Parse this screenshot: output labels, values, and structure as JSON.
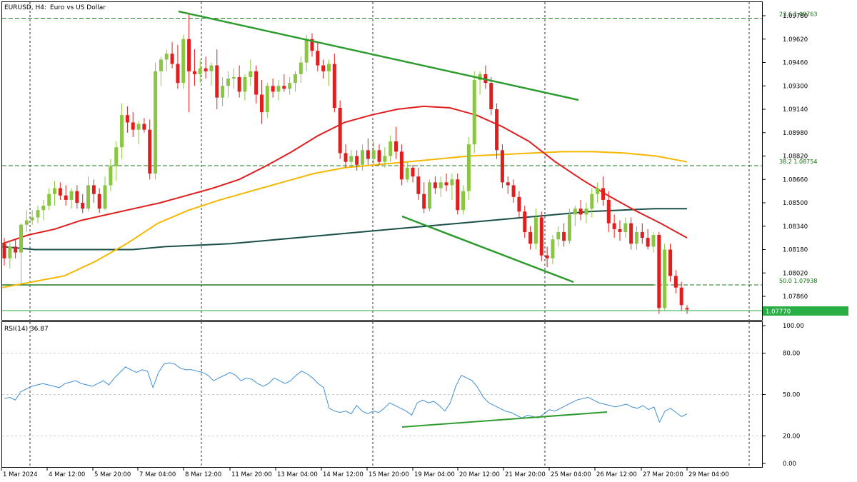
{
  "header": {
    "symbol": "EURUSD, H4:",
    "description": "Euro vs US Dollar",
    "indicator_label": "RSI(14) 36.87"
  },
  "colors": {
    "up_candle": "#8ac642",
    "down_candle": "#e01e1e",
    "ma_red": "#e01e1e",
    "ma_orange": "#f5b700",
    "ma_dark": "#1b4f4a",
    "trend_line": "#2e9b2e",
    "fib_line": "#1f7a1f",
    "bid_line": "#27ae45",
    "rsi_line": "#3f8fd8",
    "grid": "#000000"
  },
  "chart_data": [
    {
      "type": "candlestick",
      "title": "EURUSD, H4: Euro vs US Dollar",
      "ylim": [
        1.077,
        1.098
      ],
      "y_ticks": [
        "1.09780",
        "1.09620",
        "1.09460",
        "1.09300",
        "1.09140",
        "1.08980",
        "1.08820",
        "1.08660",
        "1.08500",
        "1.08340",
        "1.08180",
        "1.08020",
        "1.07860"
      ],
      "x_ticks": [
        "1 Mar 2024",
        "4 Mar 12:00",
        "5 Mar 20:00",
        "7 Mar 04:00",
        "8 Mar 12:00",
        "11 Mar 20:00",
        "13 Mar 04:00",
        "14 Mar 12:00",
        "15 Mar 20:00",
        "19 Mar 04:00",
        "20 Mar 12:00",
        "21 Mar 20:00",
        "25 Mar 04:00",
        "26 Mar 12:00",
        "27 Mar 20:00",
        "29 Mar 04:00"
      ],
      "current_price": "1.07770",
      "fib_levels": [
        {
          "label": "23.6 1.09763",
          "value": 1.09763
        },
        {
          "label": "38.2 1.08754",
          "value": 1.08754
        },
        {
          "label": "50.0 1.07938",
          "value": 1.07938
        }
      ],
      "candles": [
        [
          1.0822,
          1.0826,
          1.0807,
          1.0812
        ],
        [
          1.0812,
          1.0823,
          1.0805,
          1.082
        ],
        [
          1.082,
          1.0825,
          1.0812,
          1.0816
        ],
        [
          1.0816,
          1.0836,
          1.0794,
          1.0835
        ],
        [
          1.0835,
          1.0845,
          1.083,
          1.0838
        ],
        [
          1.0838,
          1.0845,
          1.0835,
          1.084
        ],
        [
          1.084,
          1.0848,
          1.0836,
          1.0845
        ],
        [
          1.0845,
          1.0852,
          1.0838,
          1.0848
        ],
        [
          1.0848,
          1.086,
          1.0845,
          1.0856
        ],
        [
          1.0856,
          1.0865,
          1.0848,
          1.086
        ],
        [
          1.086,
          1.0864,
          1.0852,
          1.0855
        ],
        [
          1.0855,
          1.0862,
          1.0848,
          1.0852
        ],
        [
          1.0852,
          1.086,
          1.0846,
          1.0858
        ],
        [
          1.0858,
          1.0862,
          1.0846,
          1.085
        ],
        [
          1.085,
          1.0856,
          1.0843,
          1.0846
        ],
        [
          1.0846,
          1.0868,
          1.0844,
          1.0862
        ],
        [
          1.0862,
          1.0866,
          1.085,
          1.0856
        ],
        [
          1.0856,
          1.086,
          1.0843,
          1.0846
        ],
        [
          1.0846,
          1.0868,
          1.0845,
          1.0862
        ],
        [
          1.0862,
          1.088,
          1.0858,
          1.0875
        ],
        [
          1.0875,
          1.0892,
          1.0865,
          1.0888
        ],
        [
          1.0888,
          1.0918,
          1.088,
          1.091
        ],
        [
          1.091,
          1.0916,
          1.0898,
          1.0905
        ],
        [
          1.0905,
          1.0912,
          1.0895,
          1.09
        ],
        [
          1.09,
          1.0906,
          1.089,
          1.0904
        ],
        [
          1.0904,
          1.0908,
          1.0898,
          1.09
        ],
        [
          1.09,
          1.0907,
          1.0866,
          1.087
        ],
        [
          1.087,
          1.0946,
          1.0866,
          1.094
        ],
        [
          1.094,
          1.095,
          1.093,
          1.0948
        ],
        [
          1.0948,
          1.0955,
          1.094,
          1.0952
        ],
        [
          1.0952,
          1.096,
          1.0942,
          1.0945
        ],
        [
          1.0945,
          1.0958,
          1.0928,
          1.0932
        ],
        [
          1.0932,
          1.0965,
          1.0928,
          1.0962
        ],
        [
          1.0962,
          1.098,
          1.0912,
          1.094
        ],
        [
          1.094,
          1.0955,
          1.093,
          1.0938
        ],
        [
          1.0938,
          1.0948,
          1.0932,
          1.0942
        ],
        [
          1.0942,
          1.095,
          1.0935,
          1.094
        ],
        [
          1.094,
          1.0946,
          1.093,
          1.0944
        ],
        [
          1.0944,
          1.0955,
          1.0914,
          1.0922
        ],
        [
          1.0922,
          1.0936,
          1.0916,
          1.093
        ],
        [
          1.093,
          1.094,
          1.0922,
          1.0935
        ],
        [
          1.0935,
          1.0942,
          1.0928,
          1.0936
        ],
        [
          1.0936,
          1.0944,
          1.0922,
          1.0926
        ],
        [
          1.0926,
          1.0938,
          1.092,
          1.0936
        ],
        [
          1.0936,
          1.0948,
          1.093,
          1.094
        ],
        [
          1.094,
          1.0944,
          1.0918,
          1.0924
        ],
        [
          1.0924,
          1.0934,
          1.0904,
          1.0912
        ],
        [
          1.0912,
          1.0932,
          1.0908,
          1.093
        ],
        [
          1.093,
          1.0935,
          1.0922,
          1.0926
        ],
        [
          1.0926,
          1.0934,
          1.092,
          1.093
        ],
        [
          1.093,
          1.0938,
          1.0926,
          1.0928
        ],
        [
          1.0928,
          1.0936,
          1.0924,
          1.0932
        ],
        [
          1.0932,
          1.094,
          1.0926,
          1.0938
        ],
        [
          1.0938,
          1.095,
          1.0932,
          1.0946
        ],
        [
          1.0946,
          1.0965,
          1.094,
          1.0962
        ],
        [
          1.0962,
          1.0966,
          1.095,
          1.0954
        ],
        [
          1.0954,
          1.096,
          1.094,
          1.0944
        ],
        [
          1.0944,
          1.0948,
          1.0935,
          1.094
        ],
        [
          1.094,
          1.0948,
          1.093,
          1.0945
        ],
        [
          1.0945,
          1.0952,
          1.0912,
          1.0915
        ],
        [
          1.0915,
          1.092,
          1.088,
          1.0884
        ],
        [
          1.0884,
          1.089,
          1.0874,
          1.0878
        ],
        [
          1.0878,
          1.0886,
          1.0874,
          1.0882
        ],
        [
          1.0882,
          1.0886,
          1.0872,
          1.0876
        ],
        [
          1.0876,
          1.089,
          1.0872,
          1.0886
        ],
        [
          1.0886,
          1.0894,
          1.0876,
          1.088
        ],
        [
          1.088,
          1.0892,
          1.0876,
          1.0886
        ],
        [
          1.0886,
          1.089,
          1.0876,
          1.0878
        ],
        [
          1.0878,
          1.0888,
          1.0874,
          1.0882
        ],
        [
          1.0882,
          1.0896,
          1.0878,
          1.0892
        ],
        [
          1.0892,
          1.0902,
          1.088,
          1.0885
        ],
        [
          1.0885,
          1.089,
          1.0862,
          1.0866
        ],
        [
          1.0866,
          1.0878,
          1.0864,
          1.0874
        ],
        [
          1.0874,
          1.0876,
          1.0864,
          1.0868
        ],
        [
          1.0868,
          1.0874,
          1.0852,
          1.0856
        ],
        [
          1.0856,
          1.0864,
          1.0843,
          1.0846
        ],
        [
          1.0846,
          1.0866,
          1.0844,
          1.0864
        ],
        [
          1.0864,
          1.0868,
          1.0856,
          1.086
        ],
        [
          1.086,
          1.0868,
          1.0854,
          1.0864
        ],
        [
          1.0864,
          1.087,
          1.0858,
          1.0862
        ],
        [
          1.0862,
          1.087,
          1.0852,
          1.0866
        ],
        [
          1.0866,
          1.087,
          1.0842,
          1.0845
        ],
        [
          1.0845,
          1.0862,
          1.0842,
          1.0858
        ],
        [
          1.0858,
          1.0895,
          1.0852,
          1.089
        ],
        [
          1.089,
          1.094,
          1.0884,
          1.0934
        ],
        [
          1.0934,
          1.094,
          1.0924,
          1.0938
        ],
        [
          1.0938,
          1.0944,
          1.0928,
          1.0932
        ],
        [
          1.0932,
          1.0936,
          1.091,
          1.0914
        ],
        [
          1.0914,
          1.0918,
          1.088,
          1.0886
        ],
        [
          1.0886,
          1.089,
          1.086,
          1.0864
        ],
        [
          1.0864,
          1.0868,
          1.0856,
          1.0862
        ],
        [
          1.0862,
          1.0866,
          1.085,
          1.0854
        ],
        [
          1.0854,
          1.0858,
          1.084,
          1.0844
        ],
        [
          1.0844,
          1.0848,
          1.0826,
          1.083
        ],
        [
          1.083,
          1.0834,
          1.0818,
          1.0822
        ],
        [
          1.0822,
          1.0846,
          1.0818,
          1.084
        ],
        [
          1.084,
          1.0844,
          1.081,
          1.0814
        ],
        [
          1.0814,
          1.082,
          1.0806,
          1.0812
        ],
        [
          1.0812,
          1.0828,
          1.0808,
          1.0825
        ],
        [
          1.0825,
          1.0834,
          1.082,
          1.083
        ],
        [
          1.083,
          1.0836,
          1.082,
          1.0824
        ],
        [
          1.0824,
          1.0846,
          1.0822,
          1.0842
        ],
        [
          1.0842,
          1.0848,
          1.0834,
          1.0846
        ],
        [
          1.0846,
          1.0852,
          1.0838,
          1.0842
        ],
        [
          1.0842,
          1.085,
          1.0836,
          1.0846
        ],
        [
          1.0846,
          1.086,
          1.084,
          1.0856
        ],
        [
          1.0856,
          1.0864,
          1.085,
          1.086
        ],
        [
          1.086,
          1.0868,
          1.0848,
          1.0852
        ],
        [
          1.0852,
          1.0858,
          1.083,
          1.0836
        ],
        [
          1.0836,
          1.0842,
          1.0826,
          1.0832
        ],
        [
          1.0832,
          1.0838,
          1.0824,
          1.083
        ],
        [
          1.083,
          1.084,
          1.0826,
          1.0836
        ],
        [
          1.0836,
          1.084,
          1.0818,
          1.0822
        ],
        [
          1.0822,
          1.0834,
          1.0818,
          1.083
        ],
        [
          1.083,
          1.0836,
          1.0822,
          1.0826
        ],
        [
          1.0826,
          1.0832,
          1.0818,
          1.082
        ],
        [
          1.082,
          1.083,
          1.0816,
          1.0828
        ],
        [
          1.0828,
          1.083,
          1.0774,
          1.0778
        ],
        [
          1.0778,
          1.0822,
          1.0776,
          1.0818
        ],
        [
          1.0818,
          1.0822,
          1.0796,
          1.08
        ],
        [
          1.08,
          1.0804,
          1.0788,
          1.0792
        ],
        [
          1.0792,
          1.0796,
          1.0776,
          1.078
        ],
        [
          1.0778,
          1.078,
          1.0774,
          1.0777
        ]
      ],
      "ma_red": [
        1.0822,
        1.0828,
        1.0832,
        1.0838,
        1.0842,
        1.0846,
        1.085,
        1.0855,
        1.086,
        1.0866,
        1.0875,
        1.0885,
        1.0896,
        1.0905,
        1.091,
        1.0914,
        1.0916,
        1.0915,
        1.091,
        1.0902,
        1.0892,
        1.0878,
        1.0866,
        1.0855,
        1.0845,
        1.0836,
        1.0826
      ],
      "ma_orange": [
        1.0792,
        1.0796,
        1.08,
        1.081,
        1.0822,
        1.0836,
        1.0845,
        1.0852,
        1.0858,
        1.0864,
        1.087,
        1.0874,
        1.0876,
        1.0878,
        1.088,
        1.0882,
        1.0883,
        1.0884,
        1.0885,
        1.0885,
        1.0884,
        1.0882,
        1.0878
      ],
      "ma_dark": [
        1.082,
        1.0818,
        1.0818,
        1.0818,
        1.0818,
        1.082,
        1.0821,
        1.0822,
        1.0824,
        1.0826,
        1.0828,
        1.083,
        1.0832,
        1.0834,
        1.0836,
        1.0838,
        1.084,
        1.0842,
        1.0844,
        1.0845,
        1.0846,
        1.0846
      ],
      "trend_lines": [
        {
          "from": [
            1.0978
          ],
          "to": [
            1.0925
          ]
        },
        {
          "from": [
            1.0847
          ],
          "to": [
            1.0795
          ]
        }
      ]
    },
    {
      "type": "line",
      "title": "RSI(14) 36.87",
      "ylim": [
        0,
        100
      ],
      "y_ticks": [
        "100.00",
        "80.00",
        "50.00",
        "20.00",
        "0.00"
      ],
      "values": [
        47,
        48,
        46,
        52,
        54,
        56,
        57,
        58,
        57,
        56,
        55,
        58,
        59,
        60,
        58,
        57,
        56,
        58,
        60,
        57,
        62,
        66,
        70,
        68,
        66,
        68,
        67,
        55,
        66,
        72,
        73,
        72,
        69,
        68,
        68,
        67,
        66,
        64,
        60,
        62,
        64,
        66,
        64,
        60,
        62,
        61,
        58,
        56,
        58,
        62,
        60,
        58,
        60,
        64,
        67,
        65,
        62,
        58,
        55,
        40,
        38,
        37,
        38,
        36,
        42,
        38,
        36,
        38,
        37,
        40,
        44,
        42,
        40,
        38,
        35,
        44,
        46,
        44,
        45,
        42,
        38,
        44,
        56,
        64,
        62,
        60,
        55,
        48,
        44,
        42,
        40,
        38,
        37,
        35,
        33,
        35,
        34,
        33,
        36,
        39,
        38,
        40,
        42,
        44,
        46,
        47,
        48,
        46,
        44,
        43,
        42,
        41,
        42,
        43,
        41,
        40,
        42,
        39,
        41,
        30,
        38,
        40,
        37,
        34,
        36
      ],
      "trend_line": {
        "from": 26,
        "to": 35
      },
      "current": "36.87"
    }
  ]
}
